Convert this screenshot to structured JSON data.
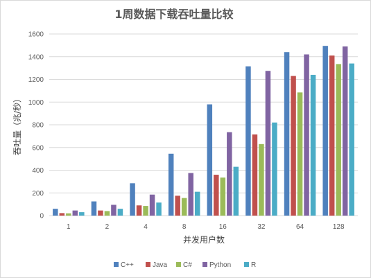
{
  "chart_data": {
    "type": "bar",
    "title": "1周数据下载吞吐量比较",
    "xlabel": "并发用户数",
    "ylabel": "吞吐量（兆/秒）",
    "ylim": [
      0,
      1600
    ],
    "yticks": [
      0,
      200,
      400,
      600,
      800,
      1000,
      1200,
      1400,
      1600
    ],
    "grid": true,
    "legend": "bottom",
    "categories": [
      "1",
      "2",
      "4",
      "8",
      "16",
      "32",
      "64",
      "128"
    ],
    "series": [
      {
        "name": "C++",
        "color": "#4f81bd",
        "values": [
          60,
          125,
          285,
          545,
          980,
          1315,
          1440,
          1495
        ]
      },
      {
        "name": "Java",
        "color": "#c0504d",
        "values": [
          22,
          45,
          90,
          175,
          360,
          715,
          1230,
          1410
        ]
      },
      {
        "name": "C#",
        "color": "#9bbb59",
        "values": [
          20,
          40,
          85,
          155,
          335,
          630,
          1085,
          1335
        ]
      },
      {
        "name": "Python",
        "color": "#8064a2",
        "values": [
          45,
          95,
          185,
          375,
          735,
          1275,
          1420,
          1490
        ]
      },
      {
        "name": "R",
        "color": "#4bacc6",
        "values": [
          30,
          60,
          115,
          210,
          430,
          820,
          1240,
          1340
        ]
      }
    ]
  }
}
